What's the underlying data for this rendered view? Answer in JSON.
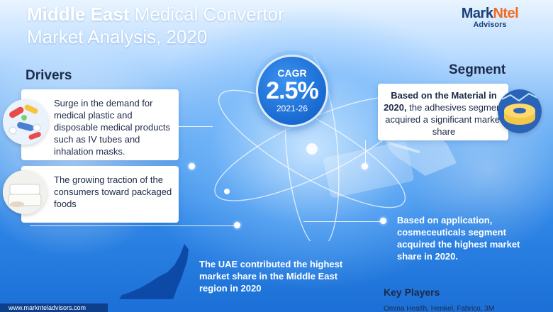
{
  "title": {
    "bold": "Middle East",
    "line1_rest": " Medical Convertor",
    "line2": "Market Analysis, 2020"
  },
  "logo": {
    "brand_a": "Mark",
    "brand_b": "Ntel",
    "sub": "Advisors"
  },
  "drivers": {
    "heading": "Drivers",
    "items": [
      {
        "text": "Surge in the demand for medical plastic and disposable medical products such as IV tubes and inhalation masks.",
        "icon": "medical-pills-icon"
      },
      {
        "text": "The growing traction of the consumers toward packaged foods",
        "icon": "food-container-icon"
      }
    ]
  },
  "cagr": {
    "label": "CAGR",
    "value": "2.5%",
    "period": "2021-26"
  },
  "segment": {
    "heading": "Segment",
    "material_bold": "Based on the Material in 2020,",
    "material_rest": " the adhesives segment acquired a significant market share",
    "application": "Based on application, cosmeceuticals segment acquired the highest market share in 2020."
  },
  "region": {
    "text": "The UAE contributed the highest market share in the Middle East region in 2020"
  },
  "key_players": {
    "heading": "Key Players",
    "list": "Omina Health, Henkel, Fabrico, 3M"
  },
  "footer": {
    "url": "www.marknteladvisors.com"
  },
  "colors": {
    "accent_orange": "#f26a21",
    "brand_navy": "#1a3e7a",
    "cagr_blue": "#1667cf"
  }
}
